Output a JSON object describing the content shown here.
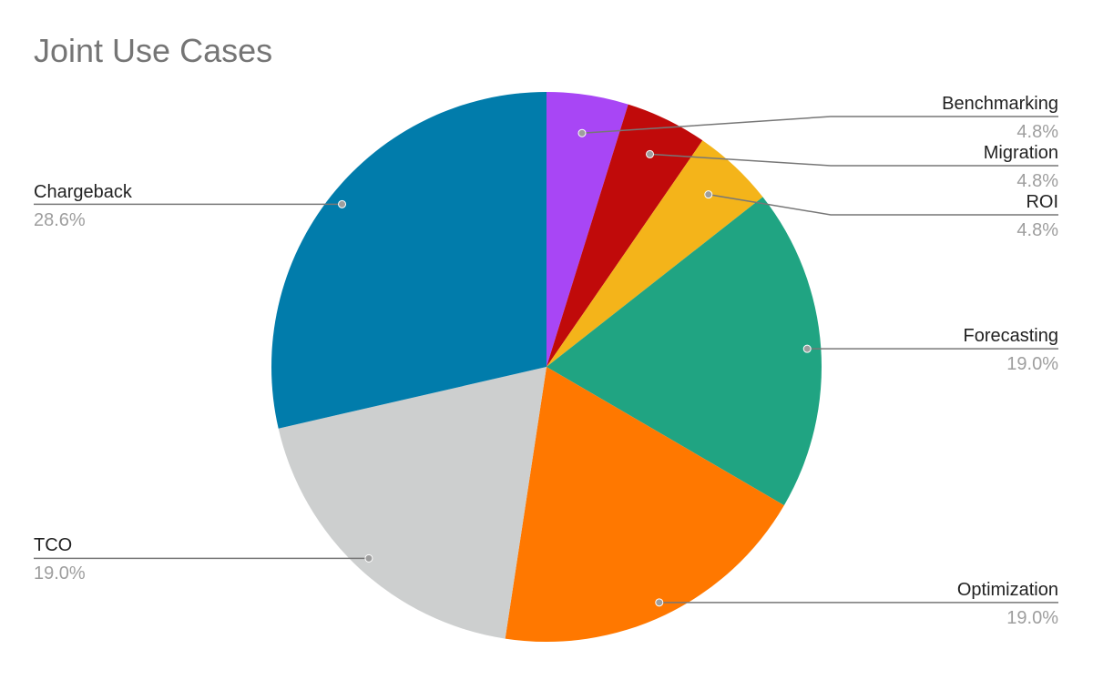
{
  "chart_data": {
    "type": "pie",
    "title": "Joint Use Cases",
    "slices": [
      {
        "label": "Benchmarking",
        "value": 4.8,
        "pct_label": "4.8%",
        "color": "#a846f5",
        "side": "right"
      },
      {
        "label": "Migration",
        "value": 4.8,
        "pct_label": "4.8%",
        "color": "#c00a0a",
        "side": "right"
      },
      {
        "label": "ROI",
        "value": 4.8,
        "pct_label": "4.8%",
        "color": "#f4b41a",
        "side": "right"
      },
      {
        "label": "Forecasting",
        "value": 19.0,
        "pct_label": "19.0%",
        "color": "#20a482",
        "side": "right"
      },
      {
        "label": "Optimization",
        "value": 19.0,
        "pct_label": "19.0%",
        "color": "#ff7800",
        "side": "right"
      },
      {
        "label": "TCO",
        "value": 19.0,
        "pct_label": "19.0%",
        "color": "#cdcfcf",
        "side": "left"
      },
      {
        "label": "Chargeback",
        "value": 28.6,
        "pct_label": "28.6%",
        "color": "#017cab",
        "side": "left"
      }
    ],
    "start_angle": "12 o'clock",
    "direction": "clockwise",
    "legend": "none",
    "labels": "outside with leader lines"
  }
}
